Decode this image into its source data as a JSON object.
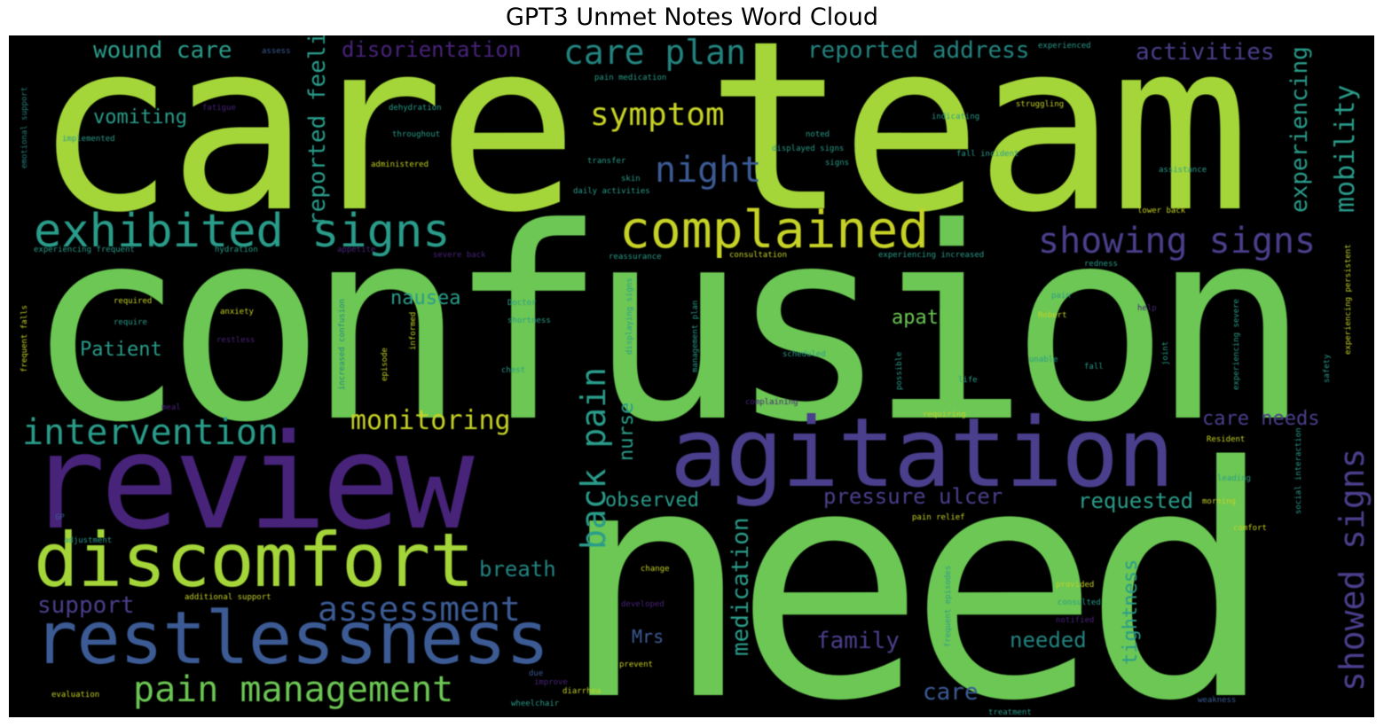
{
  "title": "GPT3 Unmet Notes Word Cloud",
  "colors": {
    "background": "#000000",
    "lime": "#a4d63a",
    "green": "#6cc754",
    "teal": "#2a9c8a",
    "teal_dark": "#23837f",
    "blue": "#3c5b95",
    "indigo": "#4a3f8c",
    "purple": "#48237a",
    "yellow": "#c6d226"
  },
  "words": {
    "care_team": "care team",
    "confusion": "confusion",
    "need": "need",
    "review": "review",
    "agitation": "agitation",
    "restlessness": "restlessness",
    "discomfort": "discomfort",
    "complained": "complained",
    "exhibited_signs": "exhibited signs",
    "showing_signs": "showing signs",
    "showed_signs": "showed signs",
    "intervention": "intervention",
    "pain_management": "pain management",
    "assessment": "assessment",
    "monitoring": "monitoring",
    "symptom": "symptom",
    "night": "night",
    "care_plan": "care plan",
    "wound_care": "wound care",
    "disorientation": "disorientation",
    "reported_address": "reported address",
    "activities": "activities",
    "mobility": "mobility",
    "experiencing": "experiencing",
    "back_pain": "back pain",
    "reported_feeling": "reported feeling",
    "vomiting": "vomiting",
    "nausea": "nausea",
    "patient": "Patient",
    "apathy": "apathy",
    "care_needs": "care needs",
    "observed": "observed",
    "pressure_ulcer": "pressure ulcer",
    "requested": "requested",
    "support": "support",
    "breath": "breath",
    "mrs": "Mrs",
    "family": "family",
    "needed": "needed",
    "care": "care",
    "medication": "medication",
    "tightness": "tightness",
    "nurse": "nurse"
  },
  "small_words": [
    "emotional support",
    "implemented",
    "assess",
    "fatigue",
    "dehydration",
    "pain medication",
    "throughout",
    "struggling",
    "experienced",
    "administered",
    "transfer",
    "skin",
    "displayed signs",
    "noted",
    "indicating",
    "signs",
    "fall incident",
    "lower back",
    "daily activities",
    "assistance",
    "experiencing frequent",
    "hydration",
    "appetite",
    "severe back",
    "reassurance",
    "consultation",
    "experiencing increased",
    "redness",
    "frequent falls",
    "required",
    "anxiety",
    "Doctor",
    "shortness",
    "require",
    "restless",
    "increased confusion",
    "informed",
    "displaying signs",
    "management plan",
    "Robert",
    "pain",
    "help",
    "scheduled",
    "unable",
    "joint",
    "episode",
    "possible",
    "fall",
    "chest",
    "life",
    "safety",
    "requiring",
    "complaining",
    "Resident",
    "experiencing severe",
    "experiencing persistent",
    "social interaction",
    "leading",
    "morning",
    "pain relief",
    "comfort",
    "adjustment",
    "change",
    "developed",
    "provided",
    "consulted",
    "frequent episodes",
    "prevent",
    "diarrhea",
    "notified",
    "additional support",
    "evaluation",
    "improve",
    "wheelchair",
    "treatment",
    "weakness",
    "GP",
    "meal",
    "due"
  ]
}
